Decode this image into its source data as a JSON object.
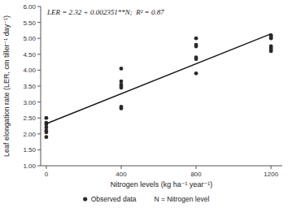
{
  "chart_data": {
    "type": "scatter",
    "x_label": "Nitrogen levels (kg ha⁻¹ year⁻¹)",
    "y_label": "Leaf elongation rate (LER, cm tiller⁻¹ day⁻¹)",
    "annotations": [
      "LER = 2.32 + 0.002351**N;  R² = 0.87",
      "N = Nitrogen level"
    ],
    "series": [
      {
        "name": "Observed data",
        "type": "scatter",
        "color": "#2a2a2a",
        "marker": "circle",
        "x": [
          0,
          0,
          0,
          0,
          0,
          0,
          0,
          400,
          400,
          400,
          400,
          400,
          400,
          400,
          800,
          800,
          800,
          800,
          800,
          800,
          1200,
          1200,
          1200,
          1200,
          1200,
          1200,
          1200
        ],
        "values": [
          2.5,
          2.35,
          2.3,
          2.2,
          2.1,
          2.05,
          1.9,
          4.05,
          3.65,
          3.55,
          3.5,
          3.45,
          2.85,
          2.8,
          5.0,
          4.8,
          4.75,
          4.4,
          4.35,
          3.9,
          5.1,
          5.05,
          5.0,
          4.75,
          4.7,
          4.65,
          4.6
        ]
      },
      {
        "type": "line",
        "color": "#1a1a1a",
        "line_style": "solid",
        "x": [
          0,
          1200
        ],
        "values": [
          2.32,
          5.1412
        ]
      }
    ],
    "xlim": [
      -30,
      1260
    ],
    "ylim": [
      1.0,
      6.0
    ],
    "xticks": [
      0,
      400,
      800,
      1200
    ],
    "yticks": [
      {
        "value": 1.0,
        "label": "1.00"
      },
      {
        "value": 1.5,
        "label": "1.50"
      },
      {
        "value": 2.0,
        "label": "2.00"
      },
      {
        "value": 2.5,
        "label": "2.50"
      },
      {
        "value": 3.0,
        "label": "3.00"
      },
      {
        "value": 3.5,
        "label": "3.50"
      },
      {
        "value": 4.0,
        "label": "4.00"
      },
      {
        "value": 4.5,
        "label": "4.50"
      },
      {
        "value": 5.0,
        "label": "5.00"
      },
      {
        "value": 5.5,
        "label": "5.50"
      },
      {
        "value": 6.0,
        "label": "6.00"
      }
    ],
    "grid": false,
    "legend": "bottom"
  }
}
